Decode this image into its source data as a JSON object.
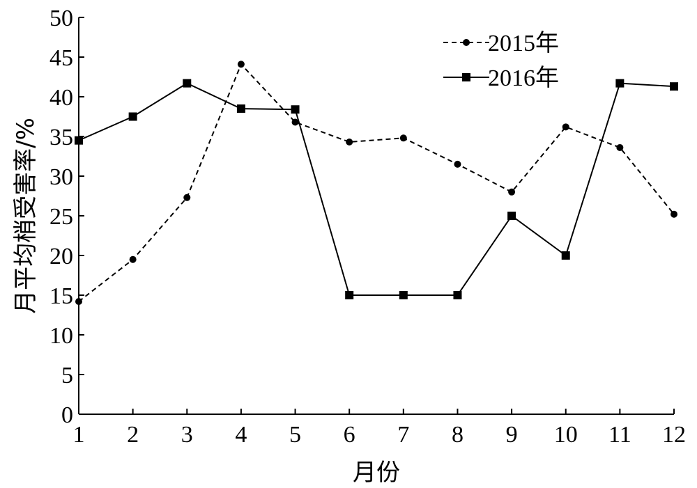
{
  "chart_data": {
    "type": "line",
    "xlabel": "月份",
    "ylabel": "月平均梢受害率/%",
    "x": [
      1,
      2,
      3,
      4,
      5,
      6,
      7,
      8,
      9,
      10,
      11,
      12
    ],
    "x_ticks": [
      "1",
      "2",
      "3",
      "4",
      "5",
      "6",
      "7",
      "8",
      "9",
      "10",
      "11",
      "12"
    ],
    "y_ticks": [
      "0",
      "5",
      "10",
      "15",
      "20",
      "25",
      "30",
      "35",
      "40",
      "45",
      "50"
    ],
    "xlim": [
      1,
      12
    ],
    "ylim": [
      0,
      50
    ],
    "grid": false,
    "legend_position": "top-right",
    "series": [
      {
        "name": "2015年",
        "line_style": "dashed",
        "marker": "circle",
        "color": "#000000",
        "values": [
          14.2,
          19.5,
          27.3,
          44.1,
          36.8,
          34.3,
          34.8,
          31.5,
          28.0,
          36.2,
          33.6,
          25.2
        ]
      },
      {
        "name": "2016年",
        "line_style": "solid",
        "marker": "square",
        "color": "#000000",
        "values": [
          34.5,
          37.5,
          41.7,
          38.5,
          38.4,
          15.0,
          15.0,
          15.0,
          25.0,
          20.0,
          41.7,
          41.3
        ]
      }
    ]
  }
}
